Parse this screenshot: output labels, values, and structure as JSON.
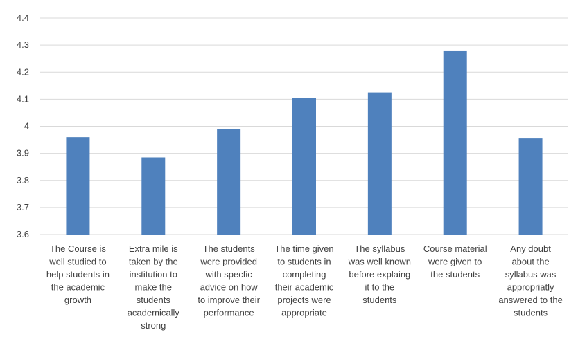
{
  "chart_data": {
    "type": "bar",
    "categories": [
      "The Course is well studied to help students in the academic growth",
      "Extra mile is taken by the institution to make the students academically strong",
      "The students were provided with specfic advice on how to improve their performance",
      "The time given to students in completing their academic projects were appropriate",
      "The syllabus was well known before explaing it to the students",
      "Course material were given to the students",
      "Any doubt about the syllabus was appropriatly answered to the students"
    ],
    "category_lines": [
      [
        "The Course is",
        "well studied to",
        "help students in",
        "the academic",
        "growth"
      ],
      [
        "Extra mile is",
        "taken by the",
        "institution to",
        "make the",
        "students",
        "academically",
        "strong"
      ],
      [
        "The students",
        "were provided",
        "with specfic",
        "advice on how",
        "to improve their",
        "performance"
      ],
      [
        "The time given",
        "to students in",
        "completing",
        "their academic",
        "projects were",
        "appropriate"
      ],
      [
        "The syllabus",
        "was well known",
        "before explaing",
        "it to the",
        "students"
      ],
      [
        "Course material",
        "were given to",
        "the students"
      ],
      [
        "Any doubt",
        "about the",
        "syllabus was",
        "appropriatly",
        "answered to the",
        "students"
      ]
    ],
    "values": [
      3.96,
      3.885,
      3.99,
      4.105,
      4.125,
      4.28,
      3.955
    ],
    "yticks": [
      "3.6",
      "3.7",
      "3.8",
      "3.9",
      "4",
      "4.1",
      "4.2",
      "4.3",
      "4.4"
    ],
    "ylim": [
      3.6,
      4.4
    ],
    "grid": true,
    "bar_color": "#4f81bd",
    "grid_color": "#d9d9d9",
    "text_color": "#404040",
    "title": "",
    "xlabel": "",
    "ylabel": ""
  }
}
